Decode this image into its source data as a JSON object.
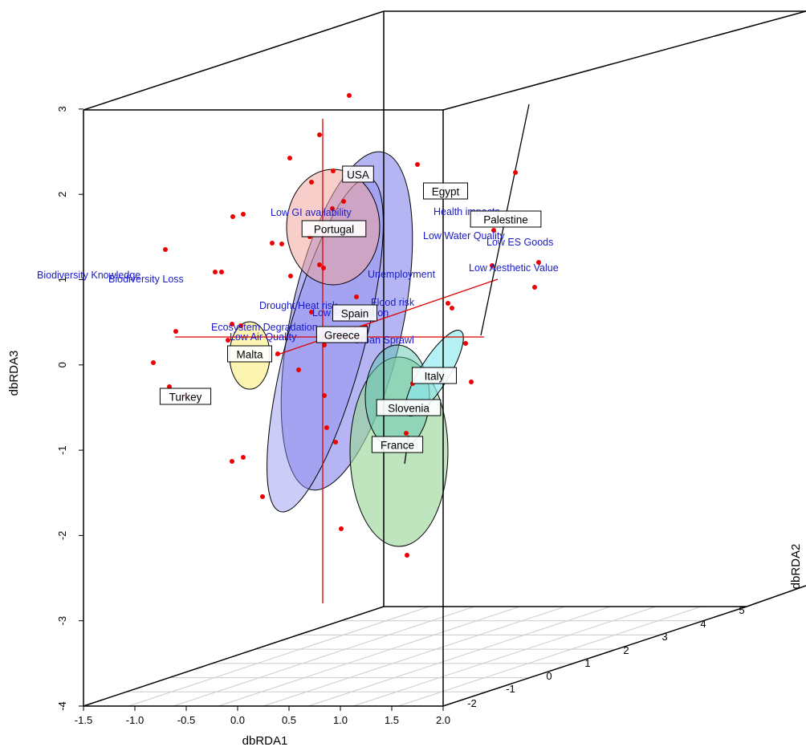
{
  "chart_data": {
    "type": "scatter",
    "title": "",
    "xlabel": "dbRDA1",
    "ylabel": "dbRDA3",
    "zlabel": "dbRDA2",
    "x_ticks": [
      "-1.5",
      "-1.0",
      "-0.5",
      "0.0",
      "0.5",
      "1.0",
      "1.5",
      "2.0"
    ],
    "y_ticks": [
      "-4",
      "-3",
      "-2",
      "-1",
      "0",
      "1",
      "2",
      "3"
    ],
    "z_ticks": [
      "-2",
      "-1",
      "0",
      "1",
      "2",
      "3",
      "4",
      "5"
    ],
    "colors": {
      "points": "#ee0000",
      "vector_labels": "#1a1acc",
      "axis_lines": "#dd0000",
      "box": "#000000",
      "floor_grid": "#cccccc"
    },
    "groups": [
      {
        "name": "USA",
        "color": "#f3a6a0"
      },
      {
        "name": "Egypt",
        "color": ""
      },
      {
        "name": "Palestine",
        "color": ""
      },
      {
        "name": "Portugal",
        "color": "#f3a6a0"
      },
      {
        "name": "Spain",
        "color": "#5a5ae6"
      },
      {
        "name": "Greece",
        "color": "#8f8fef"
      },
      {
        "name": "Malta",
        "color": "#fbf3a3"
      },
      {
        "name": "Turkey",
        "color": ""
      },
      {
        "name": "Italy",
        "color": "#8ee8ee"
      },
      {
        "name": "Slovenia",
        "color": "#61c5b0"
      },
      {
        "name": "France",
        "color": "#9bd79b"
      }
    ],
    "vectors": [
      "Low GI availability",
      "Health impacts",
      "Low Water Quality",
      "Low ES Goods",
      "Low Aesthetic Value",
      "Biodiversity Knowledge",
      "Biodiversity Loss",
      "Unemployment",
      "Drought/Heat risk",
      "Flood risk",
      "Low Participation",
      "Ecosystem Degradation",
      "Low Air Quality",
      "Urban Sprawl"
    ],
    "points_count": 52
  }
}
